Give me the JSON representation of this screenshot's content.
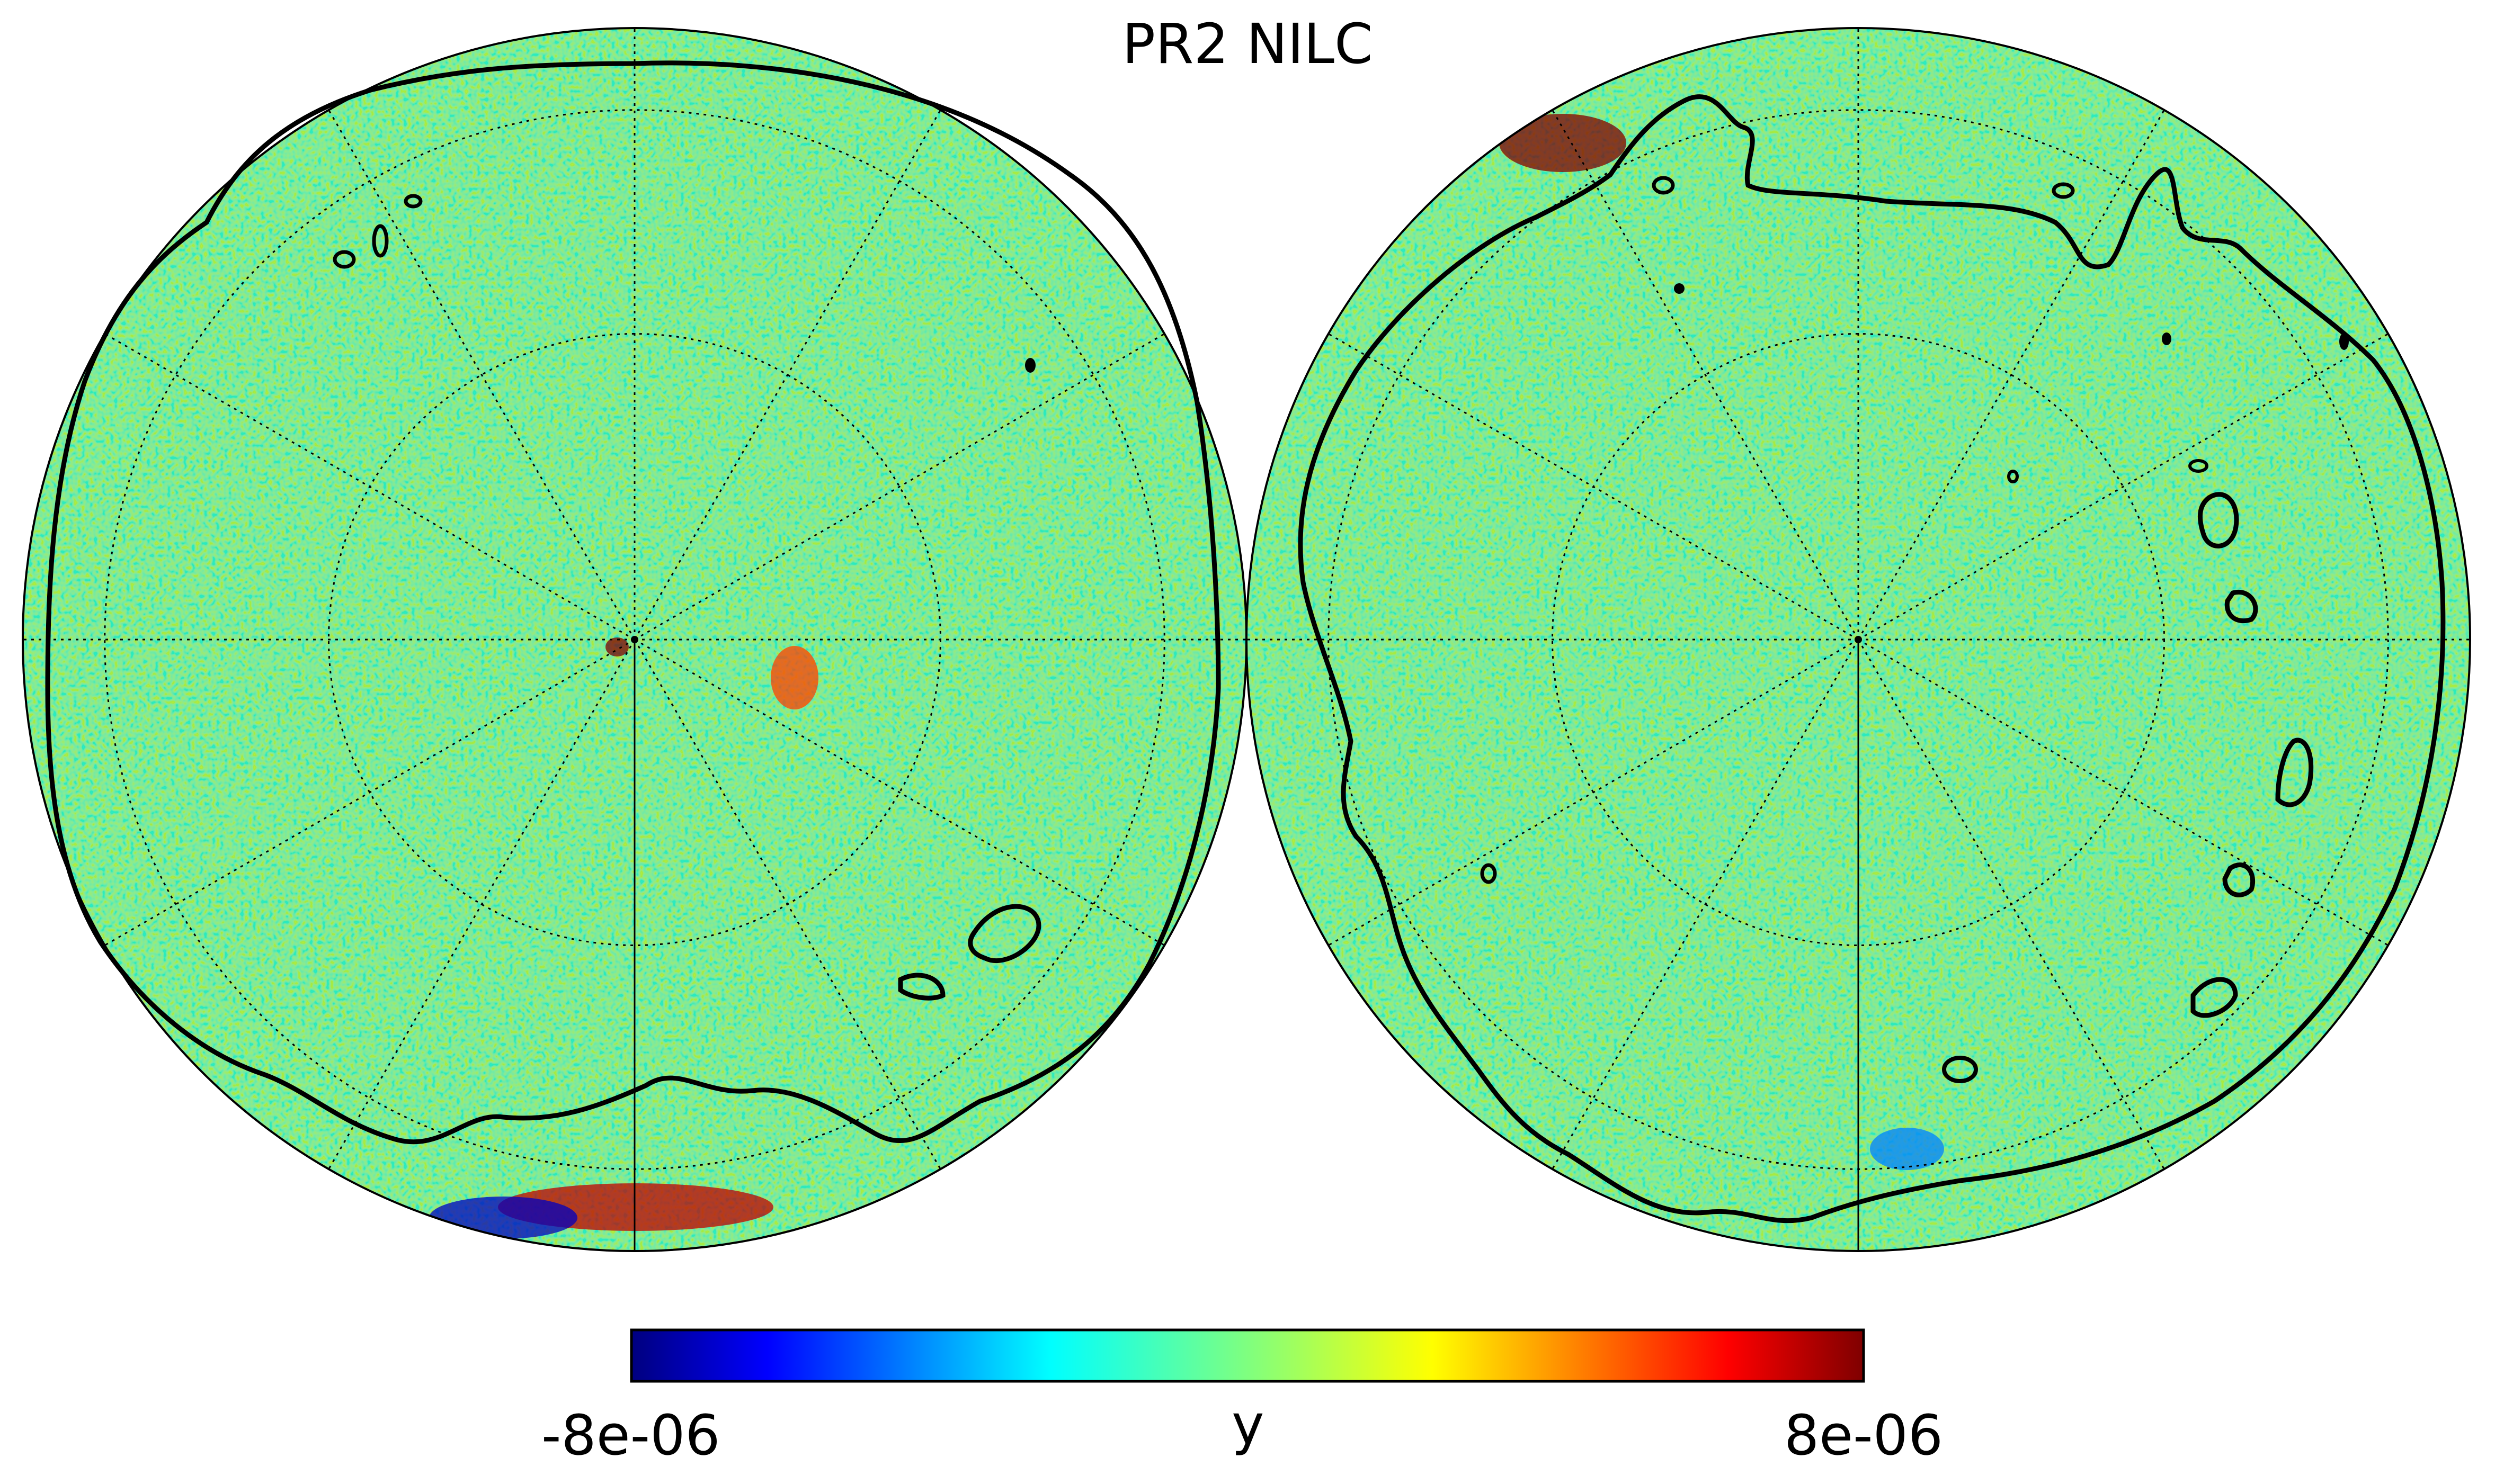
{
  "chart_data": {
    "type": "heatmap",
    "title": "PR2 NILC",
    "projection": "orthographic, two hemispheres",
    "hemispheres": [
      "left",
      "right"
    ],
    "grid": true,
    "graticule_meridians_deg": [
      0,
      30,
      60,
      90,
      120,
      150,
      180,
      210,
      240,
      270,
      300,
      330
    ],
    "graticule_parallels_deg": [
      30,
      60
    ],
    "colormap": "jet",
    "colorbar": {
      "label": "y",
      "min": -8e-06,
      "max": 8e-06,
      "tick_labels": [
        "-8e-06",
        "8e-06"
      ],
      "placement": "bottom"
    },
    "background_level": 0.0,
    "features": [
      {
        "hemisphere": "left",
        "description": "point source at center",
        "value": 8e-06
      },
      {
        "hemisphere": "left",
        "description": "extended positive patch right of center",
        "value": 5e-06
      },
      {
        "hemisphere": "left",
        "description": "positive emission near bottom rim",
        "value": 7e-06
      },
      {
        "hemisphere": "left",
        "description": "negative emission near bottom rim",
        "value": -7e-06
      },
      {
        "hemisphere": "right",
        "description": "strong mixed emission near top-left rim",
        "value": 8e-06
      },
      {
        "hemisphere": "right",
        "description": "negative patch near bottom rim",
        "value": -4e-06
      }
    ],
    "mask_contour": {
      "color": "#000000",
      "style": "solid"
    }
  },
  "colors": {
    "contour": "#000000",
    "graticule": "#000000",
    "jet_stops": [
      "#00007f",
      "#0000ff",
      "#007fff",
      "#00ffff",
      "#7fff7f",
      "#ffff00",
      "#ff7f00",
      "#ff0000",
      "#7f0000"
    ]
  }
}
